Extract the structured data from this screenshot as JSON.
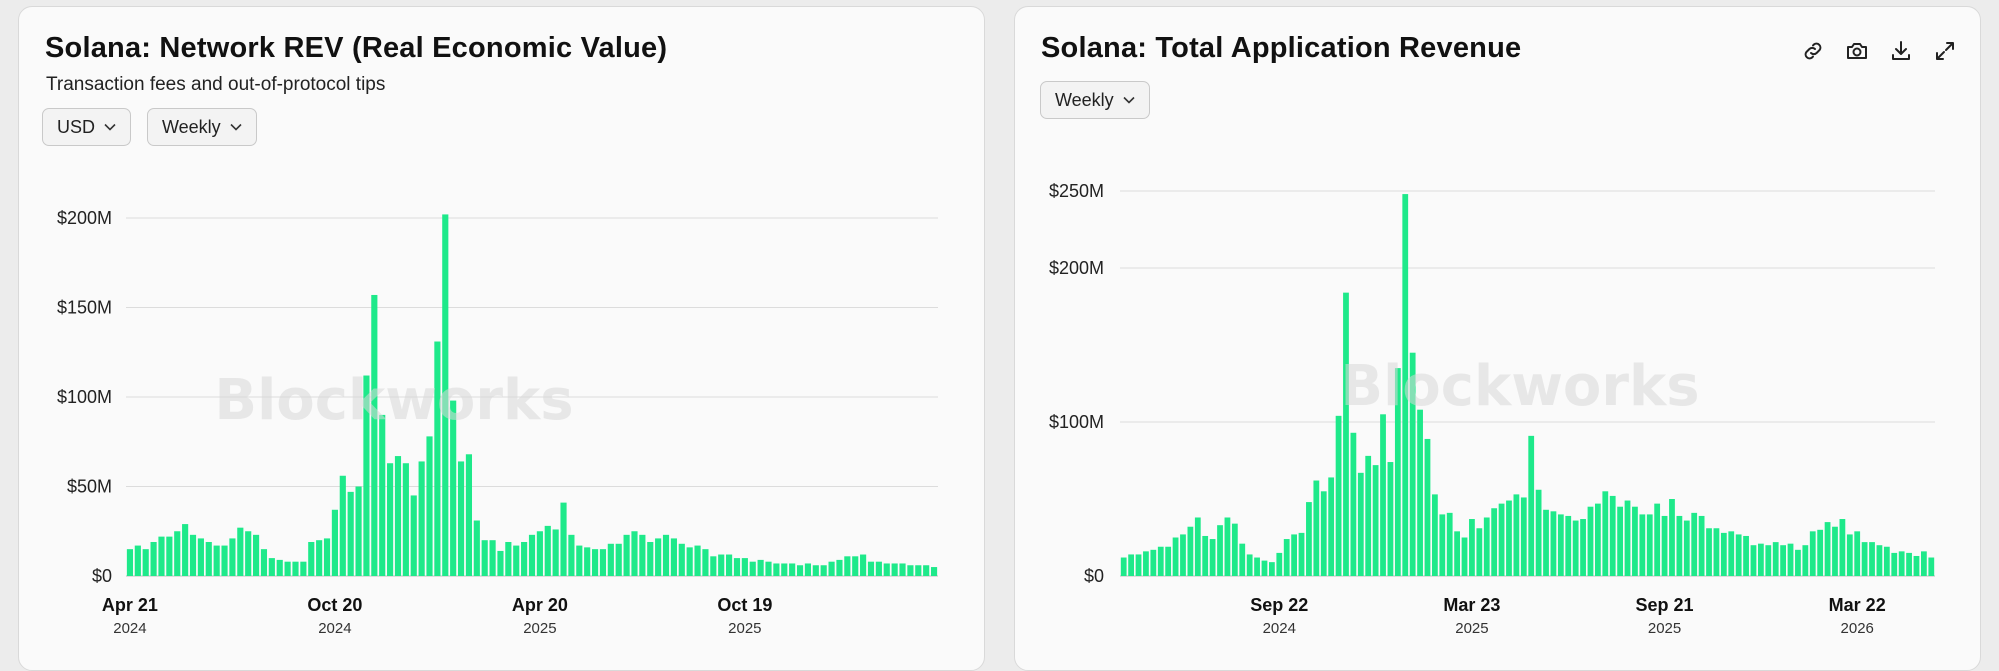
{
  "charts": {
    "rev": {
      "title": "Solana: Network REV (Real Economic Value)",
      "subtitle": "Transaction fees and out-of-protocol tips",
      "currency_dropdown": "USD",
      "interval_dropdown": "Weekly",
      "watermark": "Blockworks"
    },
    "app": {
      "title": "Solana: Total Application Revenue",
      "interval_dropdown": "Weekly",
      "watermark": "Blockworks",
      "tools": [
        "link-icon",
        "camera-icon",
        "download-icon",
        "expand-icon"
      ]
    }
  },
  "colors": {
    "bar": "#1ee98a",
    "grid": "#dcdcdc",
    "card": "#fafafa"
  },
  "chart_data": [
    {
      "type": "bar",
      "title": "Solana: Network REV (Real Economic Value)",
      "subtitle": "Transaction fees and out-of-protocol tips",
      "ylim": [
        0,
        200
      ],
      "yticks": [
        {
          "value": 0,
          "label": "$0"
        },
        {
          "value": 50,
          "label": "$50M"
        },
        {
          "value": 100,
          "label": "$100M"
        },
        {
          "value": 150,
          "label": "$150M"
        },
        {
          "value": 200,
          "label": "$200M"
        }
      ],
      "xticks": [
        {
          "index": 0,
          "label": "Apr 21",
          "year": "2024"
        },
        {
          "index": 26,
          "label": "Oct 20",
          "year": "2024"
        },
        {
          "index": 52,
          "label": "Apr 20",
          "year": "2025"
        },
        {
          "index": 78,
          "label": "Oct 19",
          "year": "2025"
        }
      ],
      "grid": true,
      "values": [
        15,
        17,
        15,
        19,
        22,
        22,
        25,
        29,
        23,
        21,
        19,
        17,
        17,
        21,
        27,
        25,
        23,
        15,
        10,
        9,
        8,
        8,
        8,
        19,
        20,
        21,
        37,
        56,
        47,
        50,
        112,
        157,
        90,
        63,
        67,
        63,
        45,
        64,
        78,
        131,
        202,
        98,
        64,
        68,
        31,
        20,
        20,
        14,
        19,
        17,
        19,
        23,
        25,
        28,
        26,
        41,
        23,
        17,
        16,
        15,
        15,
        18,
        18,
        23,
        25,
        23,
        19,
        21,
        23,
        21,
        18,
        16,
        17,
        15,
        11,
        12,
        12,
        10,
        10,
        8,
        9,
        8,
        7,
        7,
        7,
        6,
        7,
        6,
        6,
        8,
        9,
        11,
        11,
        12,
        8,
        8,
        7,
        7,
        7,
        6,
        6,
        6,
        5
      ]
    },
    {
      "type": "bar",
      "title": "Solana: Total Application Revenue",
      "ylim": [
        0,
        250
      ],
      "yticks": [
        {
          "value": 0,
          "label": "$0"
        },
        {
          "value": 100,
          "label": "$100M"
        },
        {
          "value": 200,
          "label": "$200M"
        },
        {
          "value": 250,
          "label": "$250M"
        }
      ],
      "xticks": [
        {
          "index": 21,
          "label": "Sep 22",
          "year": "2024"
        },
        {
          "index": 47,
          "label": "Mar 23",
          "year": "2025"
        },
        {
          "index": 73,
          "label": "Sep 21",
          "year": "2025"
        },
        {
          "index": 99,
          "label": "Mar 22",
          "year": "2026"
        }
      ],
      "grid": true,
      "values": [
        12,
        14,
        14,
        16,
        17,
        19,
        19,
        25,
        27,
        32,
        38,
        26,
        24,
        33,
        38,
        34,
        21,
        14,
        12,
        10,
        9,
        15,
        24,
        27,
        28,
        48,
        62,
        55,
        64,
        104,
        184,
        93,
        67,
        78,
        72,
        105,
        74,
        135,
        248,
        145,
        108,
        89,
        53,
        40,
        41,
        29,
        25,
        37,
        31,
        38,
        44,
        47,
        49,
        53,
        51,
        91,
        56,
        43,
        42,
        40,
        39,
        36,
        37,
        45,
        47,
        55,
        52,
        45,
        49,
        45,
        40,
        40,
        47,
        39,
        50,
        39,
        36,
        41,
        39,
        31,
        31,
        28,
        29,
        27,
        26,
        20,
        21,
        20,
        22,
        20,
        21,
        17,
        20,
        29,
        30,
        35,
        32,
        37,
        27,
        29,
        22,
        22,
        20,
        19,
        15,
        16,
        15,
        13,
        16,
        12
      ]
    }
  ]
}
